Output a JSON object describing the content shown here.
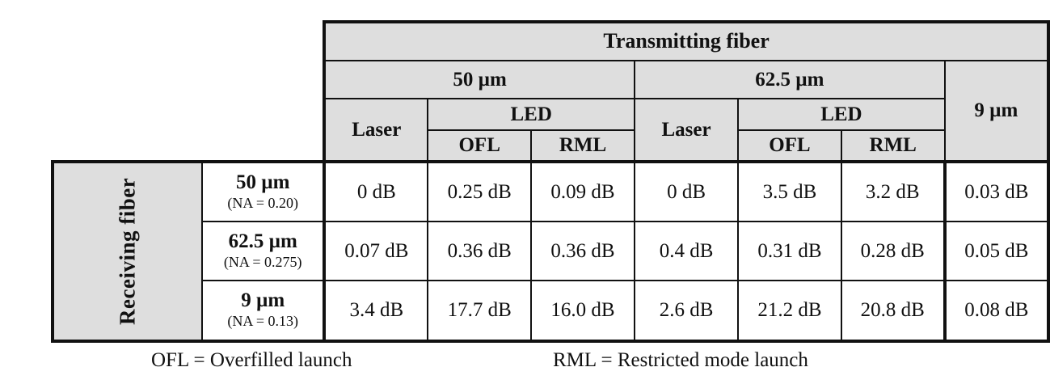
{
  "table": {
    "transmitting_label": "Transmitting fiber",
    "receiving_label": "Receiving fiber",
    "tx_groups": [
      {
        "label": "50 µm"
      },
      {
        "label": "62.5 µm"
      },
      {
        "label": "9 µm"
      }
    ],
    "laser_label": "Laser",
    "led_label": "LED",
    "ofl_label": "OFL",
    "rml_label": "RML",
    "rows": [
      {
        "fiber": "50 µm",
        "na": "(NA = 0.20)",
        "values": [
          "0 dB",
          "0.25 dB",
          "0.09 dB",
          "0 dB",
          "3.5 dB",
          "3.2 dB",
          "0.03 dB"
        ]
      },
      {
        "fiber": "62.5 µm",
        "na": "(NA = 0.275)",
        "values": [
          "0.07 dB",
          "0.36 dB",
          "0.36 dB",
          "0.4 dB",
          "0.31 dB",
          "0.28 dB",
          "0.05 dB"
        ]
      },
      {
        "fiber": "9 µm",
        "na": "(NA = 0.13)",
        "values": [
          "3.4 dB",
          "17.7 dB",
          "16.0 dB",
          "2.6 dB",
          "21.2 dB",
          "20.8 dB",
          "0.08 dB"
        ]
      }
    ]
  },
  "notes": {
    "ofl": "OFL = Overfilled launch",
    "rml": "RML = Restricted mode launch"
  }
}
